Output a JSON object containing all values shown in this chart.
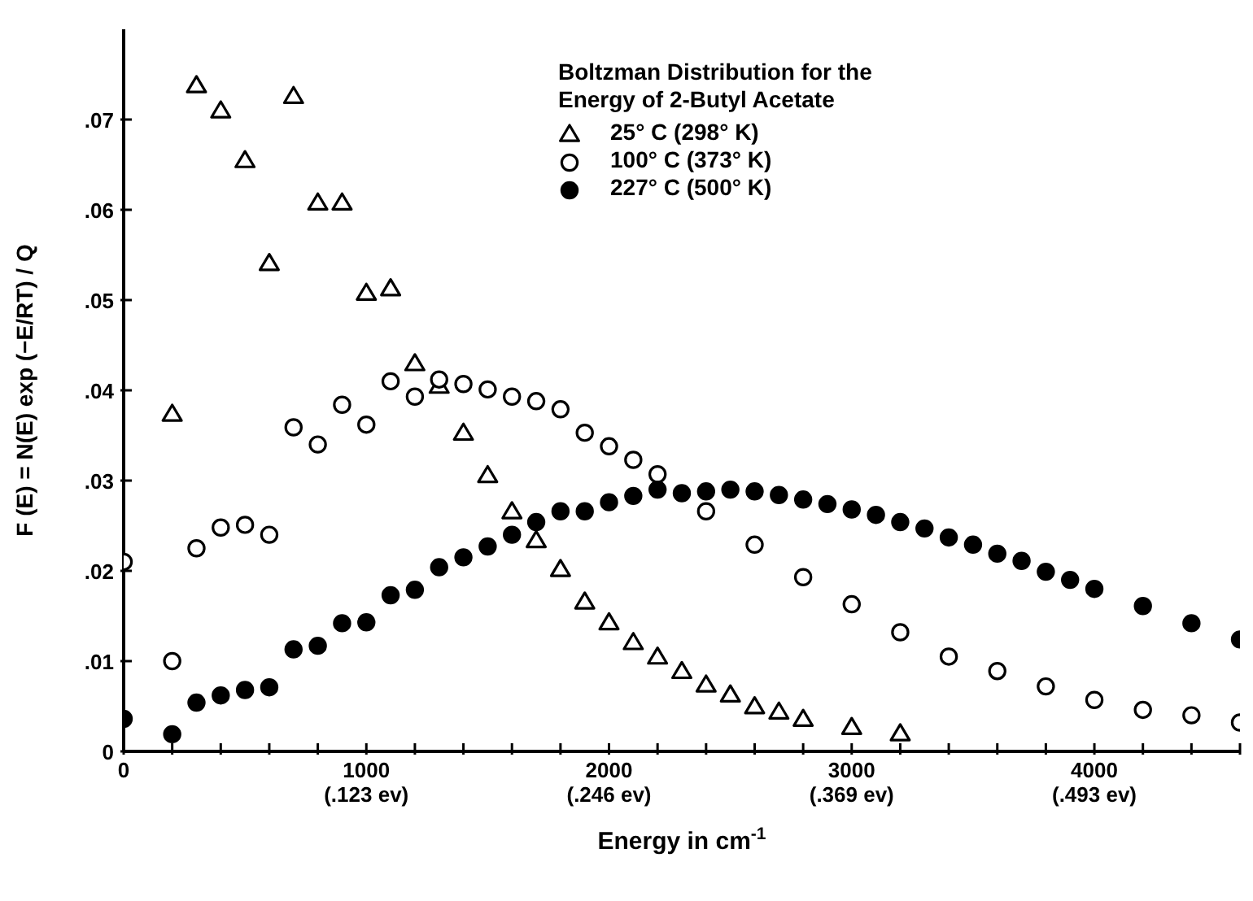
{
  "chart_data": {
    "type": "scatter",
    "legend_title": "Boltzman Distribution for the\nEnergy of 2-Butyl Acetate",
    "xlabel": "Energy in cm$^{-1}$",
    "ylabel": "F (E) = N(E) exp (−E/RT) / Q",
    "x": [
      0,
      100,
      200,
      300,
      400,
      500,
      600,
      700,
      800,
      900,
      1000,
      1100,
      1200,
      1300,
      1400,
      1500,
      1600,
      1700,
      1800,
      1900,
      2000,
      2100,
      2200,
      2300,
      2400,
      2500,
      2600,
      2700,
      2800,
      2900,
      3000,
      3100,
      3200,
      3300,
      3400,
      3500,
      3600,
      3700,
      3800,
      3900,
      4000,
      4100,
      4200,
      4300,
      4400,
      4500,
      4600
    ],
    "series": [
      {
        "name": "25° C (298° K)",
        "color": "#000000",
        "marker": "triangle",
        "values": [
          null,
          null,
          0.0373,
          0.0737,
          0.0709,
          0.0654,
          0.054,
          0.0725,
          0.0607,
          0.0607,
          0.0507,
          0.0512,
          0.0429,
          0.0404,
          0.0352,
          0.0305,
          0.0265,
          0.0233,
          0.0201,
          0.0165,
          0.0142,
          0.012,
          0.0104,
          0.0088,
          0.0073,
          0.0062,
          0.0049,
          0.0043,
          0.0035,
          null,
          0.0026,
          null,
          0.0019,
          null,
          null,
          null,
          null,
          null,
          null,
          null,
          null,
          null,
          null,
          null,
          null,
          null,
          null
        ]
      },
      {
        "name": "100° C (373° K)",
        "color": "#000000",
        "marker": "circle",
        "values": [
          0.021,
          null,
          0.01,
          0.0225,
          0.0248,
          0.0251,
          0.024,
          0.0359,
          0.034,
          0.0384,
          0.0362,
          0.041,
          0.0393,
          0.0412,
          0.0407,
          0.0401,
          0.0393,
          0.0388,
          0.0379,
          0.0353,
          0.0338,
          0.0323,
          0.0307,
          null,
          0.0266,
          null,
          0.0229,
          null,
          0.0193,
          null,
          0.0163,
          null,
          0.0132,
          null,
          0.0105,
          null,
          0.0089,
          null,
          0.0072,
          null,
          0.0057,
          null,
          0.0046,
          null,
          0.004,
          null,
          0.0032
        ]
      },
      {
        "name": "227° C (500° K)",
        "color": "#000000",
        "marker": "circle",
        "values": [
          0.0036,
          null,
          0.0019,
          0.0054,
          0.0062,
          0.0068,
          0.0071,
          0.0113,
          0.0117,
          0.0142,
          0.0143,
          0.0173,
          0.0179,
          0.0204,
          0.0215,
          0.0227,
          0.024,
          0.0254,
          0.0266,
          0.0266,
          0.0276,
          0.0283,
          0.029,
          0.0286,
          0.0288,
          0.029,
          0.0288,
          0.0284,
          0.0279,
          0.0274,
          0.0268,
          0.0262,
          0.0254,
          0.0247,
          0.0237,
          0.0229,
          0.0219,
          0.0211,
          0.0199,
          0.019,
          0.018,
          null,
          0.0161,
          null,
          0.0142,
          null,
          0.0124
        ]
      }
    ],
    "xlim": [
      0,
      4600
    ],
    "xticks": [
      0,
      {
        "value": 200,
        "label": null
      },
      {
        "value": 400,
        "label": null
      },
      {
        "value": 600,
        "label": null
      },
      {
        "value": 800,
        "label": null
      },
      1000,
      {
        "value": 1200,
        "label": null
      },
      {
        "value": 1400,
        "label": null
      },
      {
        "value": 1600,
        "label": null
      },
      {
        "value": 1800,
        "label": null
      },
      2000,
      {
        "value": 2200,
        "label": null
      },
      {
        "value": 2400,
        "label": null
      },
      {
        "value": 2600,
        "label": null
      },
      {
        "value": 2800,
        "label": null
      },
      3000,
      {
        "value": 3200,
        "label": null
      },
      {
        "value": 3400,
        "label": null
      },
      {
        "value": 3600,
        "label": null
      },
      {
        "value": 3800,
        "label": null
      },
      4000,
      {
        "value": 4200,
        "label": null
      },
      {
        "value": 4400,
        "label": null
      },
      {
        "value": 4600,
        "label": null
      }
    ],
    "ylim": [
      0,
      0.08
    ],
    "yticks": [
      0,
      {
        "value": 0.01,
        "label": ".01"
      },
      {
        "value": 0.02,
        "label": ".02"
      },
      {
        "value": 0.03,
        "label": ".03"
      },
      {
        "value": 0.04,
        "label": ".04"
      },
      {
        "value": 0.05,
        "label": ".05"
      },
      {
        "value": 0.06,
        "label": ".06"
      },
      {
        "value": 0.07,
        "label": ".07"
      }
    ],
    "annotations": [
      "(.123 ev)",
      "(.246 ev)",
      "(.369 ev)",
      "(.493 ev)"
    ],
    "grid": false,
    "legend": "top"
  }
}
